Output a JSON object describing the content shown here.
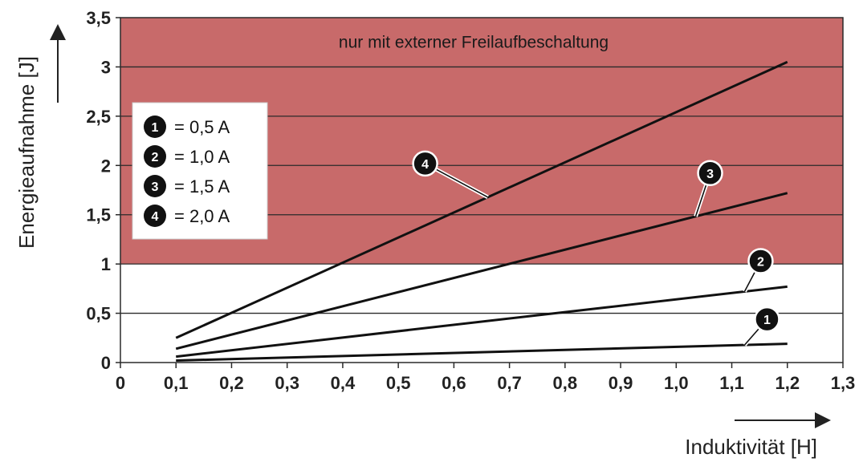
{
  "chart_data": {
    "type": "line",
    "ylabel": "Energieaufnahme [J]",
    "xlabel": "Induktivität [H]",
    "xlim": [
      0,
      1.3
    ],
    "ylim": [
      0,
      3.5
    ],
    "x_ticks": [
      0,
      0.1,
      0.2,
      0.3,
      0.4,
      0.5,
      0.6,
      0.7,
      0.8,
      0.9,
      1.0,
      1.1,
      1.2,
      1.3
    ],
    "x_tick_labels": [
      "0",
      "0,1",
      "0,2",
      "0,3",
      "0,4",
      "0,5",
      "0,6",
      "0,7",
      "0,8",
      "0,9",
      "1,0",
      "1,1",
      "1,2",
      "1,3"
    ],
    "y_ticks": [
      0,
      0.5,
      1,
      1.5,
      2,
      2.5,
      3,
      3.5
    ],
    "y_tick_labels": [
      "0",
      "0,5",
      "1",
      "1,5",
      "2",
      "2,5",
      "3",
      "3,5"
    ],
    "grid": "horizontal",
    "shaded_region": {
      "y_from": 1,
      "y_to": 3.5,
      "color": "#c86a6a",
      "label": "nur mit externer Freilaufbeschaltung"
    },
    "legend_position": "upper-left",
    "series": [
      {
        "marker": "1",
        "name": "= 0,5 A",
        "x": [
          0.1,
          1.2
        ],
        "y": [
          0.02,
          0.19
        ]
      },
      {
        "marker": "2",
        "name": "= 1,0 A",
        "x": [
          0.1,
          1.2
        ],
        "y": [
          0.06,
          0.77
        ]
      },
      {
        "marker": "3",
        "name": "= 1,5 A",
        "x": [
          0.1,
          1.2
        ],
        "y": [
          0.14,
          1.72
        ]
      },
      {
        "marker": "4",
        "name": "= 2,0 A",
        "x": [
          0.1,
          1.2
        ],
        "y": [
          0.25,
          3.05
        ]
      }
    ],
    "line_color": "#111111"
  }
}
